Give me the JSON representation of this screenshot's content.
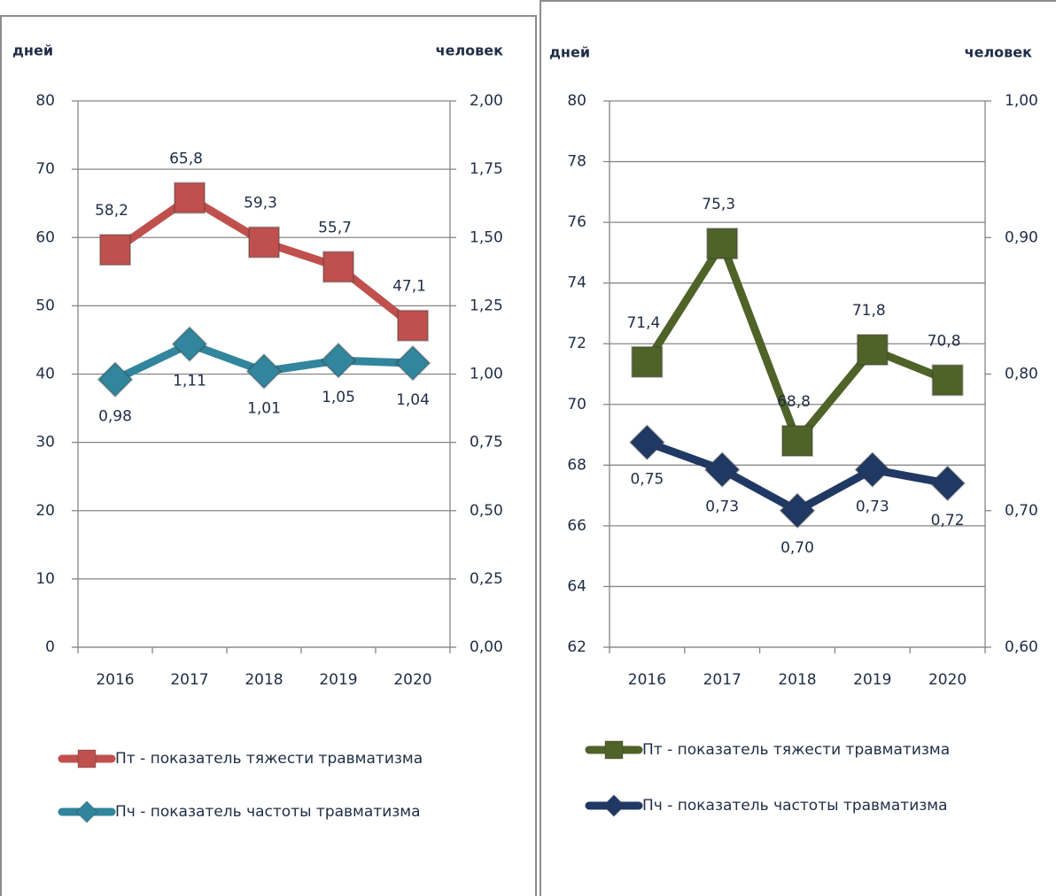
{
  "chart_data": [
    {
      "type": "line",
      "y_label": "дней",
      "y2_label": "человек",
      "categories": [
        "2016",
        "2017",
        "2018",
        "2019",
        "2020"
      ],
      "ylim": [
        0,
        80
      ],
      "yticks": [
        0,
        10,
        20,
        30,
        40,
        50,
        60,
        70,
        80
      ],
      "y2lim": [
        0,
        2
      ],
      "y2ticks": [
        {
          "value": 0,
          "label": "0,00"
        },
        {
          "value": 0.25,
          "label": "0,25"
        },
        {
          "value": 0.5,
          "label": "0,50"
        },
        {
          "value": 0.75,
          "label": "0,75"
        },
        {
          "value": 1,
          "label": "1,00"
        },
        {
          "value": 1.25,
          "label": "1,25"
        },
        {
          "value": 1.5,
          "label": "1,50"
        },
        {
          "value": 1.75,
          "label": "1,75"
        },
        {
          "value": 2,
          "label": "2,00"
        }
      ],
      "grid": true,
      "series": [
        {
          "name": "Пт - показатель тяжести травматизма",
          "color": "#c0504d",
          "marker": "square",
          "axis": "y",
          "values": [
            58.2,
            65.8,
            59.3,
            55.7,
            47.1
          ],
          "value_labels": [
            "58,2",
            "65,8",
            "59,3",
            "55,7",
            "47,1"
          ]
        },
        {
          "name": "Пч - показатель частоты травматизма",
          "color": "#31859c",
          "marker": "diamond",
          "axis": "y2",
          "values": [
            0.98,
            1.11,
            1.01,
            1.05,
            1.04
          ],
          "value_labels": [
            "0,98",
            "1,11",
            "1,01",
            "1,05",
            "1,04"
          ]
        }
      ]
    },
    {
      "type": "line",
      "y_label": "дней",
      "y2_label": "человек",
      "categories": [
        "2016",
        "2017",
        "2018",
        "2019",
        "2020"
      ],
      "ylim": [
        62,
        80
      ],
      "yticks": [
        62,
        64,
        66,
        68,
        70,
        72,
        74,
        76,
        78,
        80
      ],
      "y2lim": [
        0.6,
        1
      ],
      "y2ticks": [
        {
          "value": 0.6,
          "label": "0,60"
        },
        {
          "value": 0.7,
          "label": "0,70"
        },
        {
          "value": 0.8,
          "label": "0,80"
        },
        {
          "value": 0.9,
          "label": "0,90"
        },
        {
          "value": 1,
          "label": "1,00"
        }
      ],
      "grid": true,
      "series": [
        {
          "name": "Пт - показатель тяжести травматизма",
          "color": "#4f6228",
          "marker": "square",
          "axis": "y",
          "values": [
            71.4,
            75.3,
            68.8,
            71.8,
            70.8
          ],
          "value_labels": [
            "71,4",
            "75,3",
            "68,8",
            "71,8",
            "70,8"
          ]
        },
        {
          "name": "Пч - показатель частоты травматизма",
          "color": "#1f3864",
          "marker": "diamond",
          "axis": "y2",
          "values": [
            0.75,
            0.73,
            0.7,
            0.73,
            0.72
          ],
          "value_labels": [
            "0,75",
            "0,73",
            "0,70",
            "0,73",
            "0,72"
          ]
        }
      ]
    }
  ]
}
